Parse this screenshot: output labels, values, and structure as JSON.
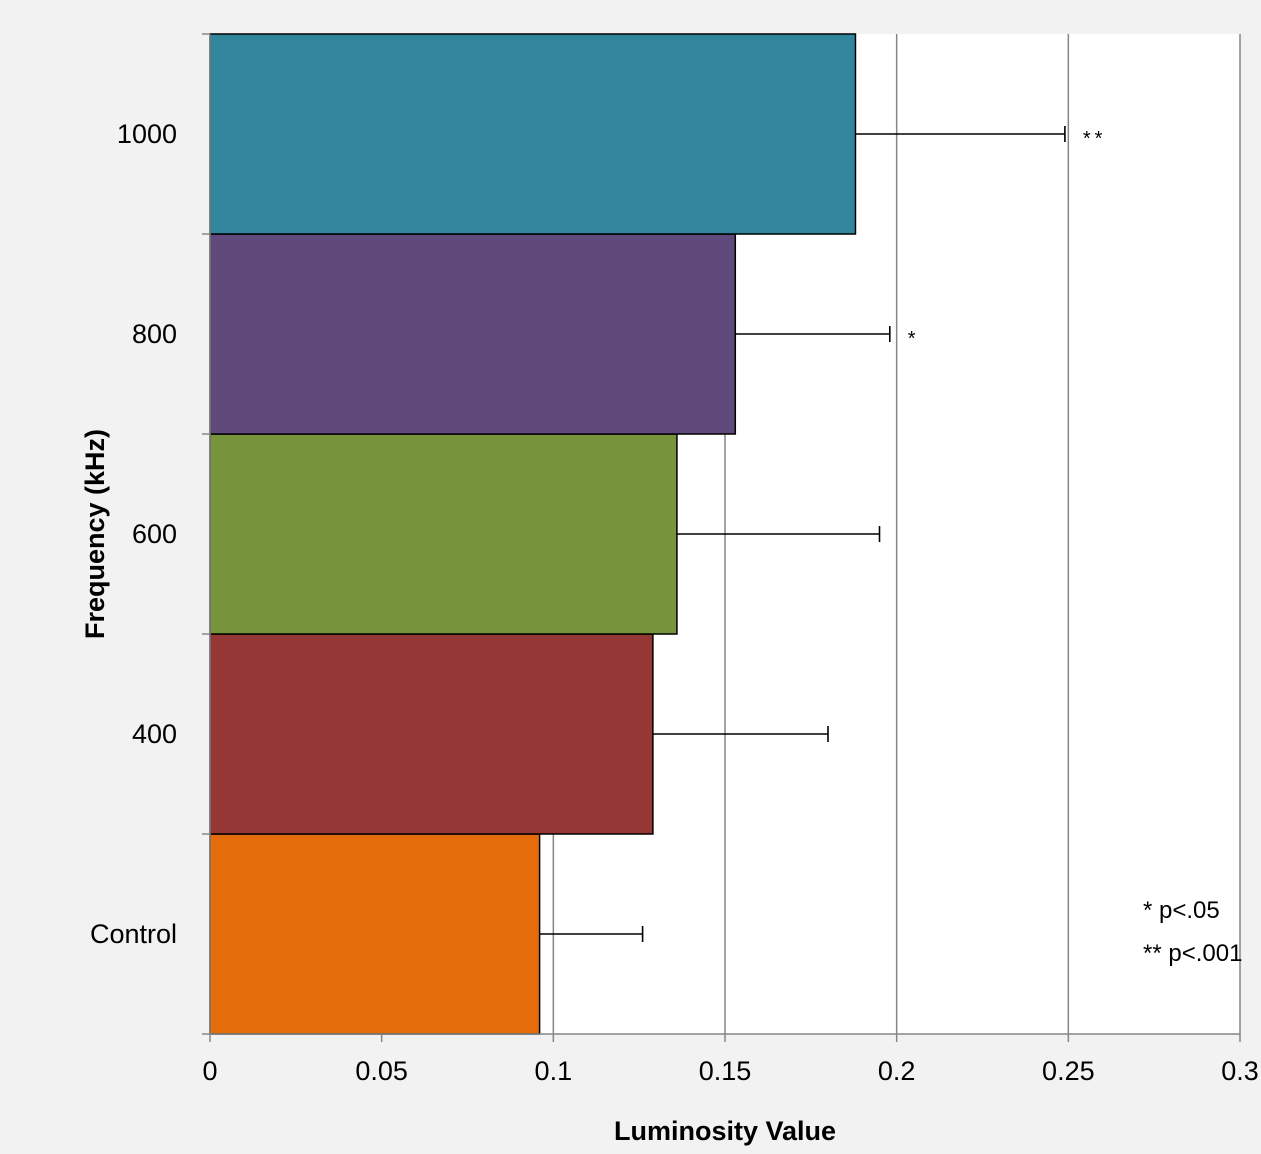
{
  "chart_data": {
    "type": "bar",
    "orientation": "horizontal",
    "xlabel": "Luminosity Value",
    "ylabel": "Frequency (kHz)",
    "categories": [
      "Control",
      "400",
      "600",
      "800",
      "1000"
    ],
    "values": [
      0.096,
      0.129,
      0.136,
      0.153,
      0.188
    ],
    "errors": [
      0.03,
      0.051,
      0.059,
      0.045,
      0.061
    ],
    "significance": [
      "",
      "",
      "",
      "*",
      "**"
    ],
    "colors": [
      "#e46c0a",
      "#953735",
      "#77933c",
      "#604a7b",
      "#31859c"
    ],
    "xlim": [
      0,
      0.3
    ],
    "xticks": [
      "0",
      "0.05",
      "0.1",
      "0.15",
      "0.2",
      "0.25",
      "0.3"
    ],
    "grid": true,
    "annotations": [
      "* p<.05",
      "** p<.001"
    ]
  }
}
